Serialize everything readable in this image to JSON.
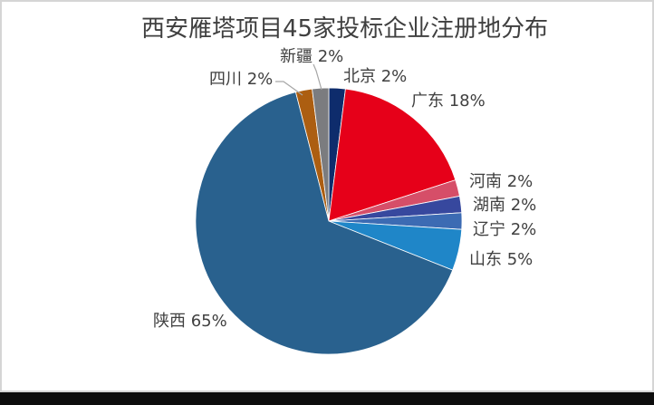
{
  "chart_data": {
    "type": "pie",
    "title": "西安雁塔项目45家投标企业注册地分布",
    "legend_position": "none",
    "data_labels": "category name + percentage, outside end",
    "start_angle_deg": 0,
    "direction": "clockwise",
    "slices": [
      {
        "id": "beijing",
        "name": "北京",
        "value": 2,
        "label": "北京 2%",
        "color": "#0e2c6c"
      },
      {
        "id": "guangdong",
        "name": "广东",
        "value": 18,
        "label": "广东 18%",
        "color": "#e60019"
      },
      {
        "id": "henan",
        "name": "河南",
        "value": 2,
        "label": "河南 2%",
        "color": "#d64e68"
      },
      {
        "id": "hunan",
        "name": "湖南",
        "value": 2,
        "label": "湖南 2%",
        "color": "#37489e"
      },
      {
        "id": "liaoning",
        "name": "辽宁",
        "value": 2,
        "label": "辽宁 2%",
        "color": "#3c6bb3"
      },
      {
        "id": "shandong",
        "name": "山东",
        "value": 5,
        "label": "山东 5%",
        "color": "#1f86c8"
      },
      {
        "id": "shaanxi",
        "name": "陕西",
        "value": 65,
        "label": "陕西 65%",
        "color": "#29618e"
      },
      {
        "id": "sichuan",
        "name": "四川",
        "value": 2,
        "label": "四川 2%",
        "color": "#ac5e11"
      },
      {
        "id": "xinjiang",
        "name": "新疆",
        "value": 2,
        "label": "新疆 2%",
        "color": "#7b7c7f"
      }
    ]
  },
  "colors": {
    "background": "#ffffff",
    "chart_border": "#d5d5d5",
    "title_text": "#3f3f3f",
    "label_text": "#404040",
    "leader_line": "#a6a6a6",
    "bottom_bar": "#0d0d0d",
    "slice_separator": "#ffffff"
  }
}
